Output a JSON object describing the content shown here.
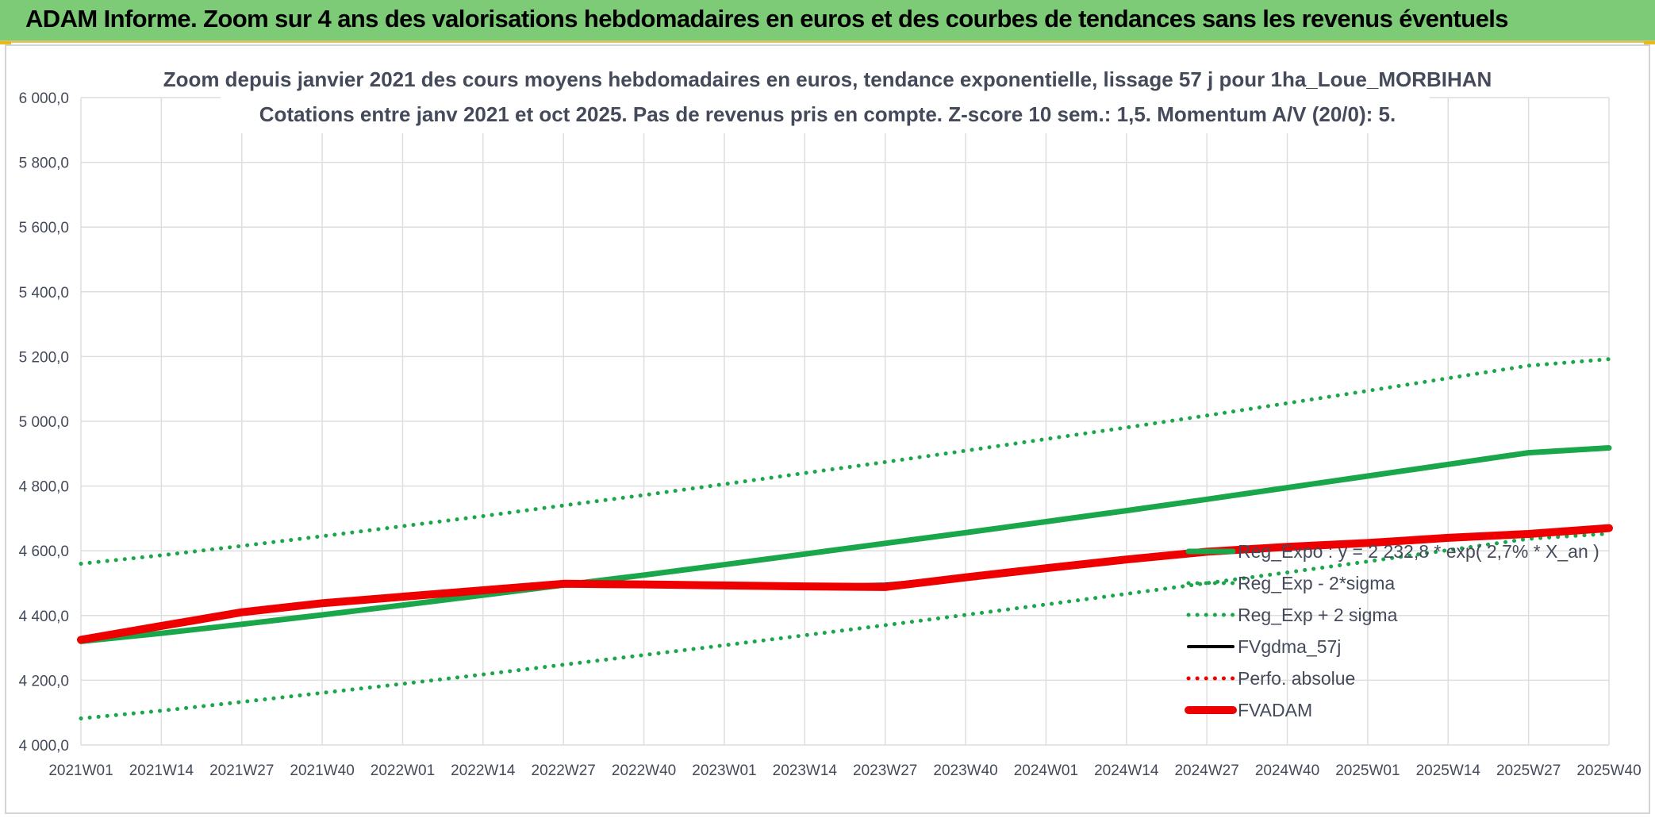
{
  "banner": {
    "title": "ADAM Informe. Zoom sur 4 ans des valorisations hebdomadaires en euros et des courbes de tendances sans les revenus éventuels"
  },
  "colors": {
    "banner": "#7ecb77",
    "green": "#1aa64a",
    "red": "#ee0000",
    "black": "#000000",
    "grid": "#dedede",
    "text": "#444a5a"
  },
  "chart_data": {
    "type": "line",
    "title": "Zoom depuis janvier 2021 des cours moyens hebdomadaires en euros, tendance exponentielle, lissage 57 j pour 1ha_Loue_MORBIHAN",
    "subtitle": "Cotations entre janv 2021 et oct 2025. Pas de revenus pris en compte. Z-score 10 sem.: 1,5. Momentum A/V (20/0): 5.",
    "xlabel": "",
    "ylabel": "",
    "categories": [
      "2021W01",
      "2021W14",
      "2021W27",
      "2021W40",
      "2022W01",
      "2022W14",
      "2022W27",
      "2022W40",
      "2023W01",
      "2023W14",
      "2023W27",
      "2023W40",
      "2024W01",
      "2024W14",
      "2024W27",
      "2024W40",
      "2025W01",
      "2025W14",
      "2025W27",
      "2025W40"
    ],
    "y_ticks": [
      "4 000,0",
      "4 200,0",
      "4 400,0",
      "4 600,0",
      "4 800,0",
      "5 000,0",
      "5 200,0",
      "5 400,0",
      "5 600,0",
      "5 800,0",
      "6 000,0"
    ],
    "ylim": [
      4000,
      6000
    ],
    "grid": true,
    "legend_position": "bottom-right",
    "series": [
      {
        "name": "Reg_Expo : y = 2 232,8 * exp( 2,7% * X_an )",
        "style": "solid-thick",
        "color": "#1aa64a",
        "values": [
          4320,
          4345,
          4373,
          4402,
          4432,
          4463,
          4494,
          4525,
          4557,
          4590,
          4623,
          4656,
          4690,
          4724,
          4759,
          4795,
          4831,
          4867,
          4903,
          4918
        ]
      },
      {
        "name": "Reg_Exp - 2*sigma",
        "style": "dotted",
        "color": "#1aa64a",
        "values": [
          4082,
          4106,
          4133,
          4161,
          4189,
          4218,
          4248,
          4278,
          4308,
          4339,
          4370,
          4402,
          4434,
          4467,
          4500,
          4533,
          4567,
          4602,
          4637,
          4653
        ]
      },
      {
        "name": "Reg_Exp + 2 sigma",
        "style": "dotted",
        "color": "#1aa64a",
        "values": [
          4560,
          4586,
          4615,
          4645,
          4676,
          4707,
          4740,
          4772,
          4806,
          4840,
          4874,
          4909,
          4945,
          4981,
          5018,
          5056,
          5094,
          5133,
          5172,
          5192
        ]
      },
      {
        "name": "FVgdma_57j",
        "style": "solid",
        "color": "#000000",
        "values": [
          4325,
          4370,
          4415,
          4440,
          4460,
          4480,
          4500,
          4497,
          4494,
          4492,
          4497,
          4520,
          4548,
          4575,
          4598,
          4613,
          4625,
          4640,
          4652,
          4668
        ]
      },
      {
        "name": "Perfo. absolue",
        "style": "dotted",
        "color": "#ee0000",
        "values": [
          4325,
          4368,
          4410,
          4438,
          4458,
          4478,
          4498,
          4496,
          4493,
          4490,
          4488,
          4518,
          4546,
          4573,
          4597,
          4612,
          4624,
          4640,
          4652,
          4670
        ]
      },
      {
        "name": "FVADAM",
        "style": "solid-thick",
        "color": "#ee0000",
        "values": [
          4325,
          4368,
          4410,
          4438,
          4458,
          4478,
          4498,
          4496,
          4493,
          4490,
          4488,
          4518,
          4546,
          4573,
          4597,
          4612,
          4624,
          4640,
          4652,
          4670
        ]
      }
    ]
  }
}
